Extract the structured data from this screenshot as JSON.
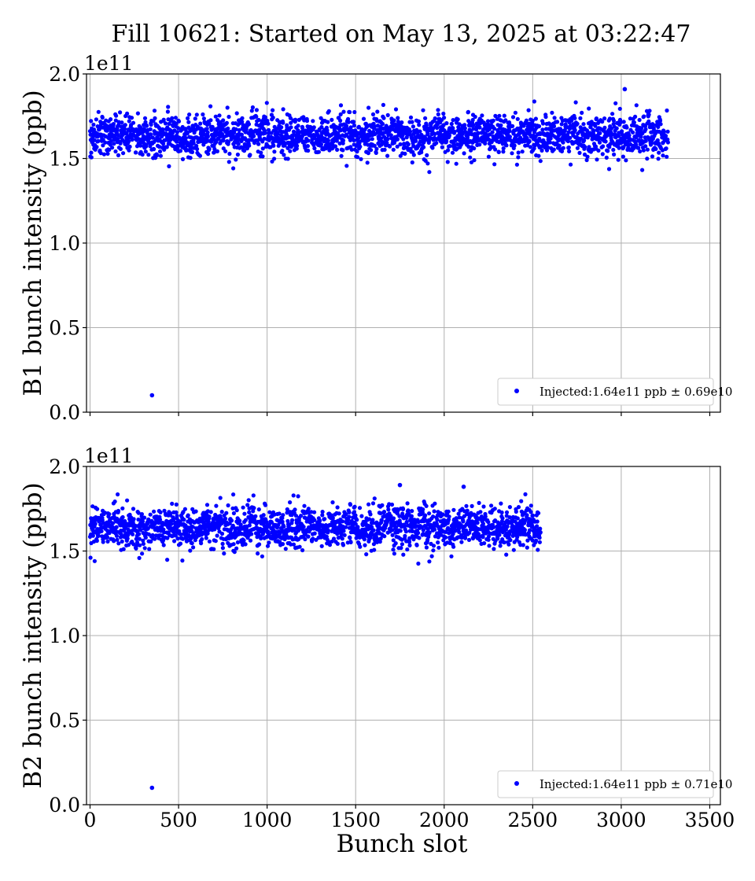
{
  "figure": {
    "title": "Fill 10621: Started on May 13, 2025 at 03:22:47",
    "xlabel": "Bunch slot"
  },
  "chart_data": [
    {
      "type": "scatter",
      "ylabel": "B1 bunch intensity (ppb)",
      "y_offset_label": "1e11",
      "xlim": [
        -20,
        3560
      ],
      "ylim": [
        0.0,
        2.0
      ],
      "x_ticks": [
        0,
        500,
        1000,
        1500,
        2000,
        2500,
        3000,
        3500
      ],
      "x_tick_labels": [],
      "y_ticks": [
        0.0,
        0.5,
        1.0,
        1.5,
        2.0
      ],
      "y_tick_labels": [
        "0.0",
        "0.5",
        "1.0",
        "1.5",
        "2.0"
      ],
      "grid": true,
      "legend_position": "lower-right",
      "color": "#0000ff",
      "series": [
        {
          "legend": "Injected:1.64e11 ppb ± 0.69e10",
          "mean": 1.64,
          "sd": 0.069,
          "x_start": 0,
          "x_end": 3265,
          "outliers": [
            [
              350,
              0.1
            ],
            [
              3020,
              1.91
            ]
          ]
        }
      ]
    },
    {
      "type": "scatter",
      "ylabel": "B2 bunch intensity (ppb)",
      "y_offset_label": "1e11",
      "xlim": [
        -20,
        3560
      ],
      "ylim": [
        0.0,
        2.0
      ],
      "x_ticks": [
        0,
        500,
        1000,
        1500,
        2000,
        2500,
        3000,
        3500
      ],
      "x_tick_labels": [
        "0",
        "500",
        "1000",
        "1500",
        "2000",
        "2500",
        "3000",
        "3500"
      ],
      "y_ticks": [
        0.0,
        0.5,
        1.0,
        1.5,
        2.0
      ],
      "y_tick_labels": [
        "0.0",
        "0.5",
        "1.0",
        "1.5",
        "2.0"
      ],
      "grid": true,
      "legend_position": "lower-right",
      "color": "#0000ff",
      "series": [
        {
          "legend": "Injected:1.64e11 ppb ± 0.71e10",
          "mean": 1.64,
          "sd": 0.071,
          "x_start": 0,
          "x_end": 2545,
          "outliers": [
            [
              350,
              0.1
            ],
            [
              1750,
              1.89
            ],
            [
              2110,
              1.88
            ]
          ]
        }
      ]
    }
  ]
}
